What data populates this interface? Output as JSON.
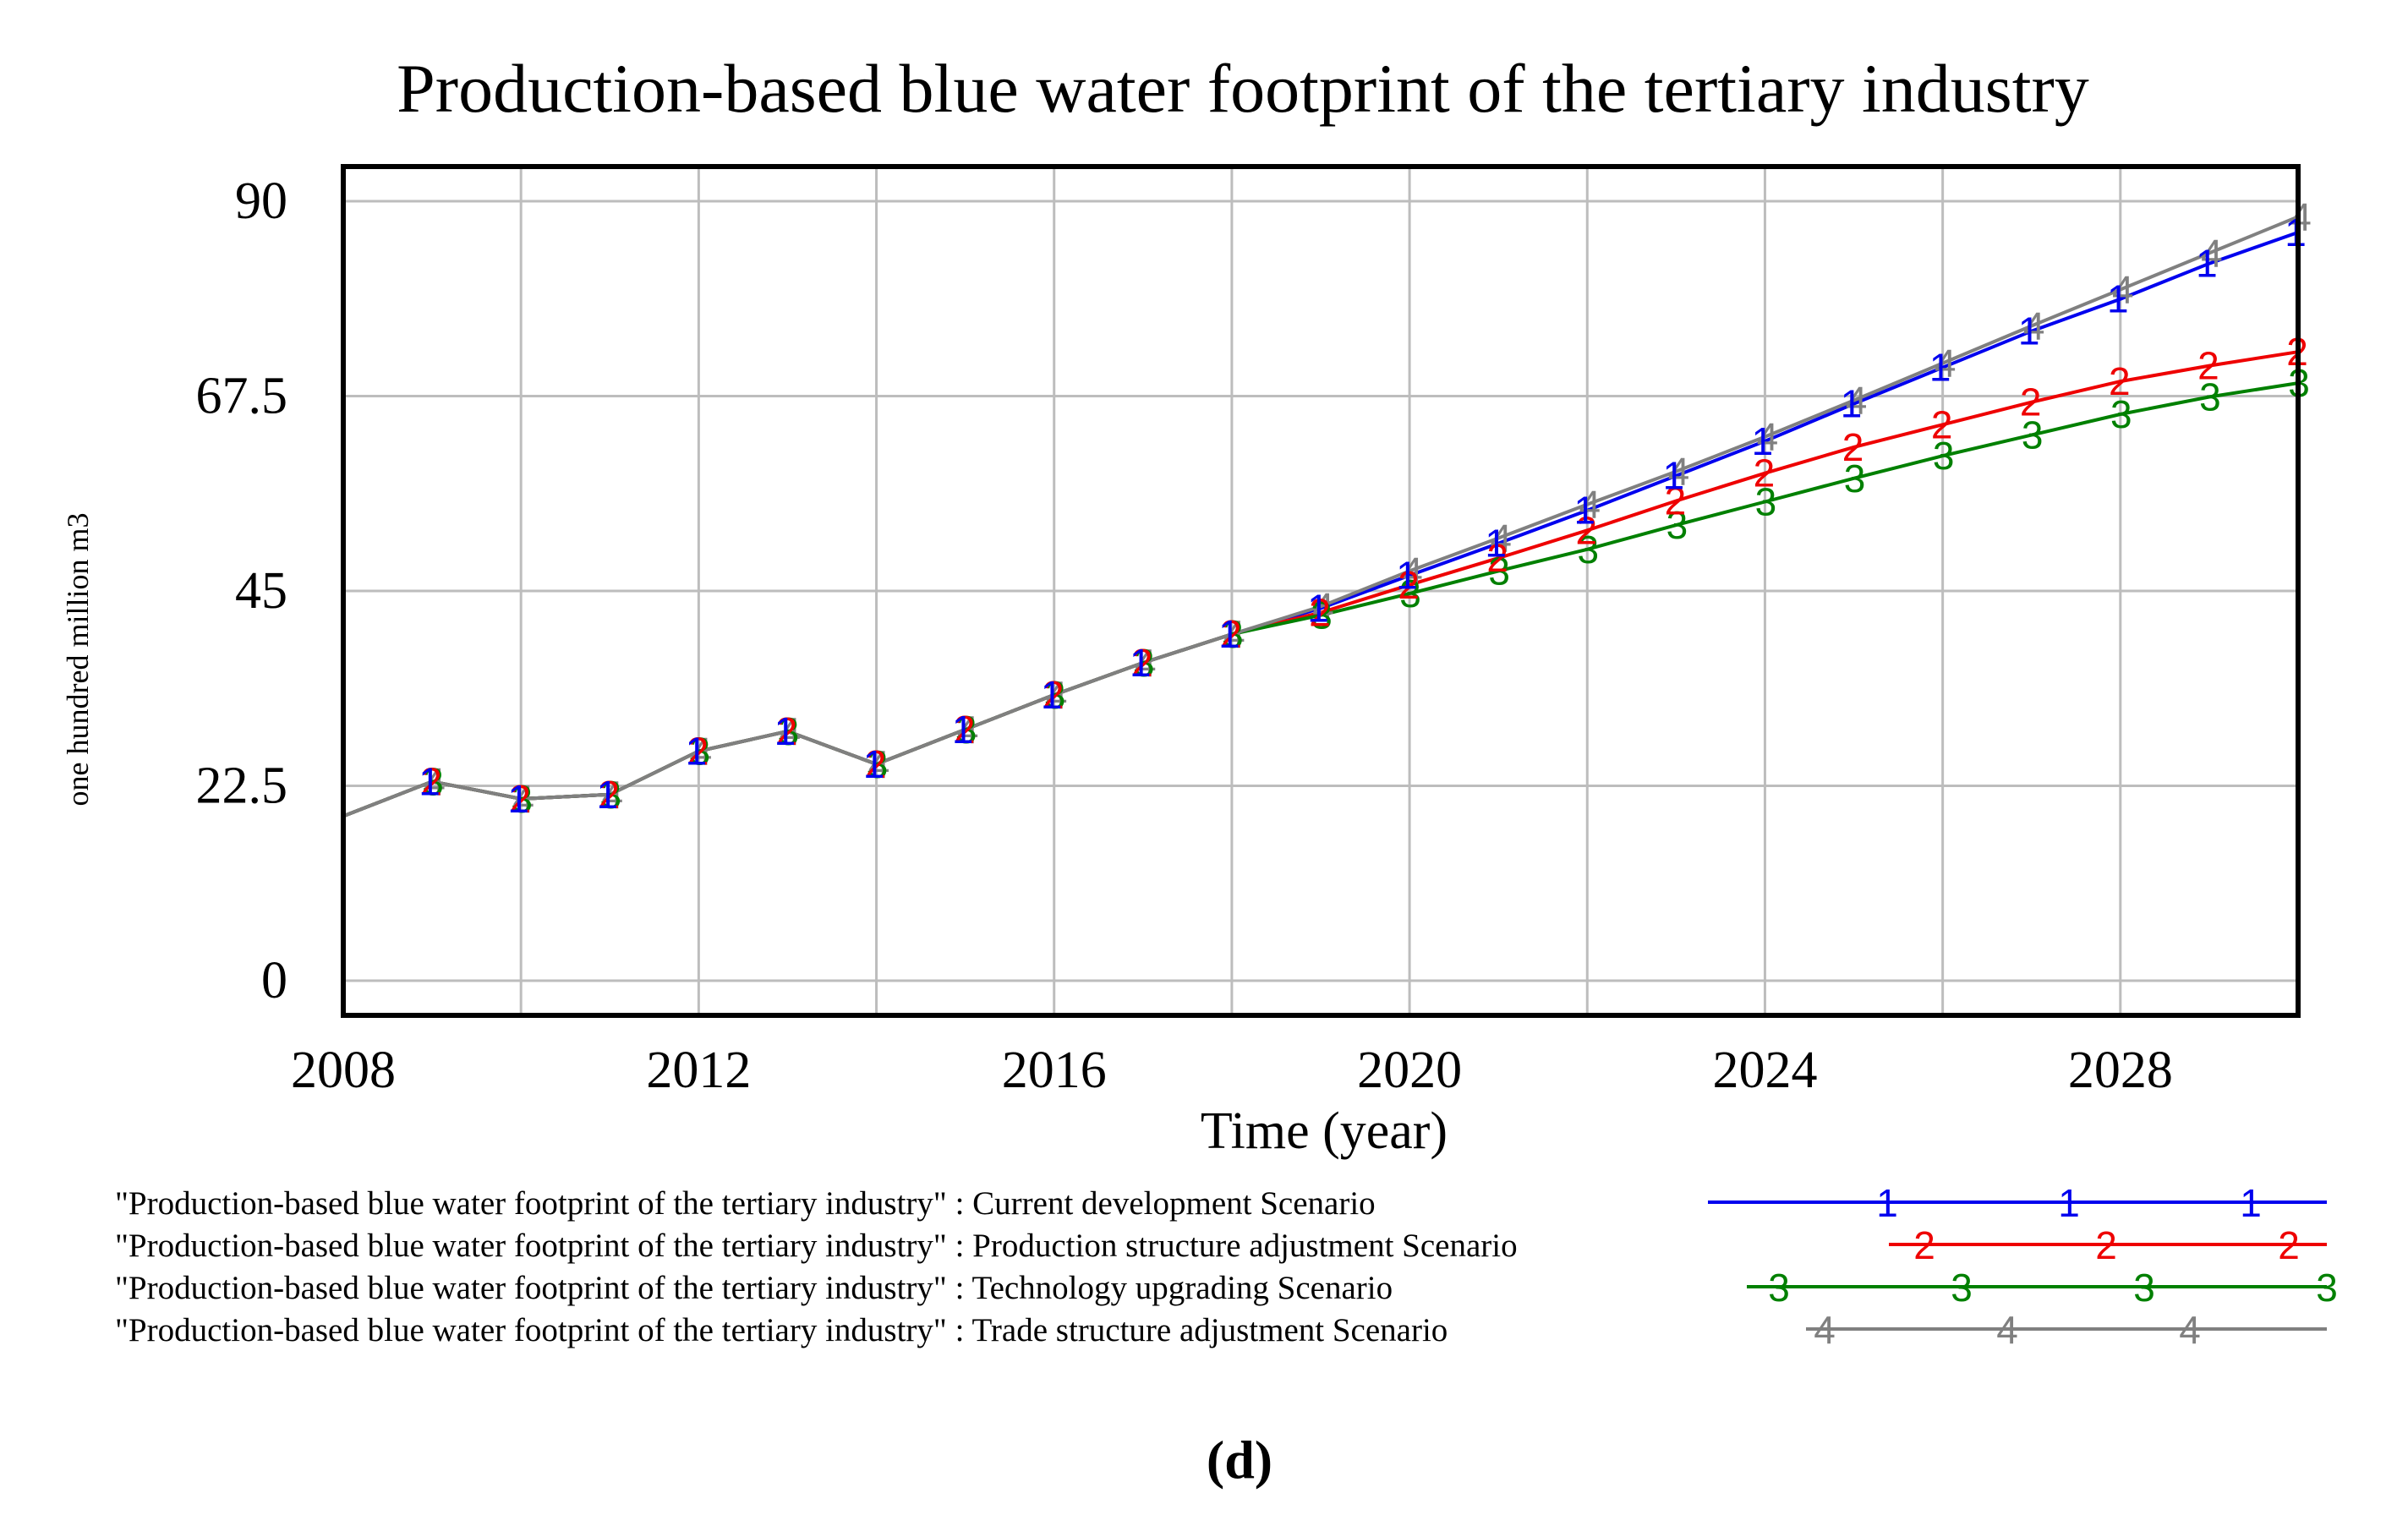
{
  "chart_data": {
    "type": "line",
    "title": "Production-based blue water footprint of the tertiary industry",
    "xlabel": "Time (year)",
    "ylabel": "one hundred million m3",
    "xlim": [
      2008,
      2030
    ],
    "ylim": [
      -4,
      94
    ],
    "x_ticks": [
      "2008",
      "2012",
      "2016",
      "2020",
      "2024",
      "2028"
    ],
    "y_ticks": [
      "0",
      "22.5",
      "45",
      "67.5",
      "90"
    ],
    "grid": true,
    "legend_position": "bottom",
    "panel_label": "(d)",
    "x": [
      2008,
      2009,
      2010,
      2011,
      2012,
      2013,
      2014,
      2015,
      2016,
      2017,
      2018,
      2019,
      2020,
      2021,
      2022,
      2023,
      2024,
      2025,
      2026,
      2027,
      2028,
      2029,
      2030
    ],
    "series": [
      {
        "name": "\"Production-based blue water footprint of the tertiary industry\" : Current development Scenario",
        "marker": "1",
        "color": "#0000ee",
        "values": [
          19,
          23,
          21,
          21.5,
          26.5,
          28.8,
          25,
          29,
          33,
          36.7,
          40,
          43,
          46.8,
          50.5,
          54.3,
          58.3,
          62.3,
          66.6,
          70.8,
          75,
          78.7,
          82.8,
          86.4
        ]
      },
      {
        "name": "\"Production-based blue water footprint of the tertiary industry\" : Production structure adjustment Scenario",
        "marker": "2",
        "color": "#ee0000",
        "values": [
          19,
          23,
          21,
          21.5,
          26.5,
          28.8,
          25,
          29,
          33,
          36.7,
          40,
          42.5,
          45.7,
          48.8,
          52,
          55.4,
          58.6,
          61.6,
          64.2,
          66.8,
          69.2,
          71,
          72.6
        ]
      },
      {
        "name": "\"Production-based blue water footprint of the tertiary industry\" : Technology upgrading Scenario",
        "marker": "3",
        "color": "#008000",
        "values": [
          19,
          23,
          21,
          21.5,
          26.5,
          28.8,
          25,
          29,
          33,
          36.7,
          40,
          42.2,
          44.7,
          47.3,
          49.8,
          52.6,
          55.3,
          58,
          60.6,
          63,
          65.4,
          67.4,
          69
        ]
      },
      {
        "name": "\"Production-based blue water footprint of the tertiary industry\" : Trade structure adjustment Scenario",
        "marker": "4",
        "color": "#808080",
        "values": [
          19,
          23,
          21,
          21.5,
          26.5,
          28.8,
          25,
          29,
          33,
          36.7,
          40,
          43.2,
          47.3,
          51.1,
          55,
          58.8,
          62.8,
          67,
          71.3,
          75.6,
          79.8,
          84,
          88.2
        ]
      }
    ]
  }
}
